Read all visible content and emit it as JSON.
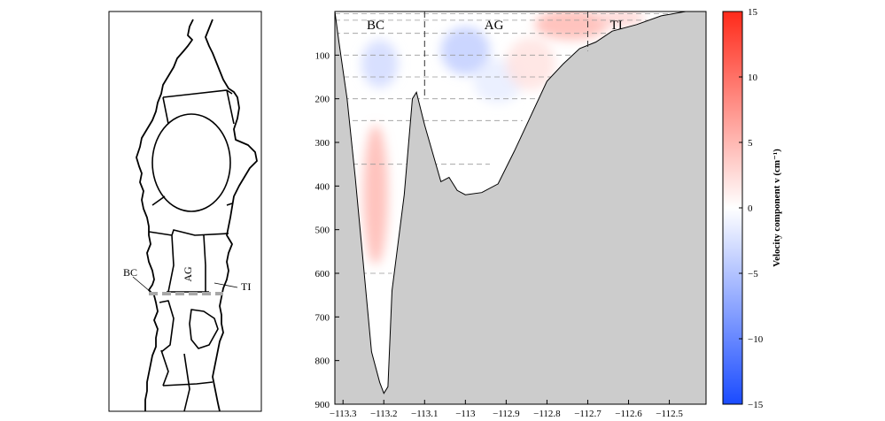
{
  "map_inset": {
    "labels": [
      "BC",
      "AG",
      "TI"
    ]
  },
  "chart_data": {
    "type": "heatmap",
    "title": "",
    "xlabel": "",
    "ylabel": "",
    "xlim": [
      -113.32,
      -112.41
    ],
    "ylim": [
      900,
      0
    ],
    "x_ticks": [
      -113.3,
      -113.2,
      -113.1,
      -113,
      -112.9,
      -112.8,
      -112.7,
      -112.6,
      -112.5
    ],
    "x_tick_labels": [
      "−113.3",
      "−113.2",
      "−113.1",
      "−113",
      "−112.9",
      "−112.8",
      "−112.7",
      "−112.6",
      "−112.5"
    ],
    "y_ticks": [
      100,
      200,
      300,
      400,
      500,
      600,
      700,
      800,
      900
    ],
    "y_tick_labels": [
      "100",
      "200",
      "300",
      "400",
      "500",
      "600",
      "700",
      "800",
      "900"
    ],
    "region_labels": [
      {
        "text": "BC",
        "x": -113.22,
        "y": 30
      },
      {
        "text": "AG",
        "x": -112.93,
        "y": 30
      },
      {
        "text": "TI",
        "x": -112.63,
        "y": 30
      }
    ],
    "region_boundaries_x": [
      -113.1,
      -112.7
    ],
    "dashed_depths": [
      {
        "depth": 5,
        "x_end": -112.47
      },
      {
        "depth": 20,
        "x_end": -112.47
      },
      {
        "depth": 50,
        "x_end": -112.54
      },
      {
        "depth": 100,
        "x_end": -112.62
      },
      {
        "depth": 150,
        "x_end": -112.69
      },
      {
        "depth": 200,
        "x_end": -112.72
      },
      {
        "depth": 250,
        "x_end": -112.86
      },
      {
        "depth": 350,
        "x_end": -112.94
      },
      {
        "depth": 600,
        "x_end": -113.18
      }
    ],
    "bathymetry": [
      [
        -113.32,
        0
      ],
      [
        -113.31,
        70
      ],
      [
        -113.29,
        200
      ],
      [
        -113.27,
        380
      ],
      [
        -113.25,
        580
      ],
      [
        -113.23,
        780
      ],
      [
        -113.21,
        850
      ],
      [
        -113.2,
        875
      ],
      [
        -113.19,
        860
      ],
      [
        -113.18,
        640
      ],
      [
        -113.15,
        420
      ],
      [
        -113.13,
        200
      ],
      [
        -113.12,
        185
      ],
      [
        -113.1,
        260
      ],
      [
        -113.06,
        390
      ],
      [
        -113.04,
        380
      ],
      [
        -113.02,
        410
      ],
      [
        -113.0,
        420
      ],
      [
        -112.96,
        415
      ],
      [
        -112.92,
        395
      ],
      [
        -112.88,
        320
      ],
      [
        -112.84,
        240
      ],
      [
        -112.8,
        160
      ],
      [
        -112.76,
        120
      ],
      [
        -112.72,
        85
      ],
      [
        -112.68,
        70
      ],
      [
        -112.64,
        45
      ],
      [
        -112.58,
        30
      ],
      [
        -112.52,
        10
      ],
      [
        -112.46,
        0
      ]
    ],
    "velocity_blobs": [
      {
        "x": -113.22,
        "y": 420,
        "value": 5,
        "sx": 0.03,
        "sy": 160
      },
      {
        "x": -113.21,
        "y": 120,
        "value": -3,
        "sx": 0.045,
        "sy": 55
      },
      {
        "x": -113.0,
        "y": 90,
        "value": -4,
        "sx": 0.06,
        "sy": 55
      },
      {
        "x": -112.92,
        "y": 160,
        "value": -1.5,
        "sx": 0.06,
        "sy": 50
      },
      {
        "x": -112.74,
        "y": 30,
        "value": 5,
        "sx": 0.09,
        "sy": 35
      },
      {
        "x": -112.84,
        "y": 120,
        "value": 2,
        "sx": 0.06,
        "sy": 60
      },
      {
        "x": -112.62,
        "y": 15,
        "value": 3,
        "sx": 0.06,
        "sy": 20
      }
    ],
    "colorbar": {
      "label": "Velocity component v (cm⁻¹)",
      "range": [
        -15,
        15
      ],
      "ticks": [
        15,
        10,
        5,
        0,
        -5,
        -10,
        -15
      ],
      "tick_labels": [
        "15",
        "10",
        "5",
        "0",
        "−5",
        "−10",
        "−15"
      ],
      "color_low": "#1a4bff",
      "color_mid": "#ffffff",
      "color_high": "#ff2a1a"
    },
    "colors": {
      "seafloor": "#cccccc",
      "grid_dash": "#9a9a9a",
      "boundary_dash": "#333333"
    }
  }
}
